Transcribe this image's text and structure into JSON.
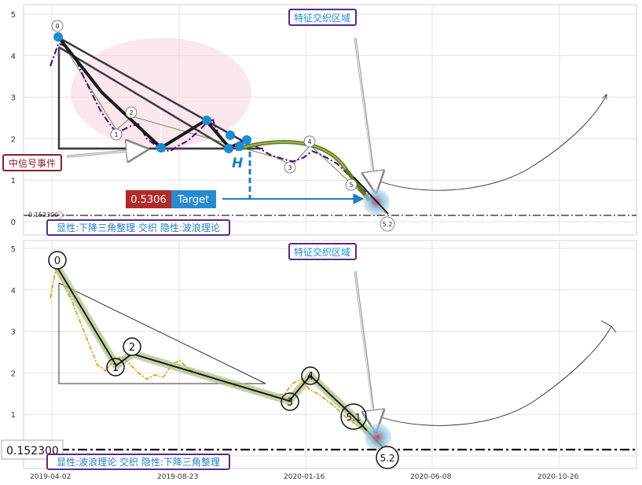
{
  "chart_data": [
    {
      "type": "line",
      "title": "",
      "ylim": [
        0,
        5.2
      ],
      "yticks": [
        0,
        1,
        2,
        3,
        4,
        5
      ],
      "grid": true,
      "zone_label": "特征交织区域",
      "signal_label": "中信号事件",
      "target": {
        "value_label": "0.5306",
        "name": "Target",
        "value": 0.5306
      },
      "baseline": {
        "label": "0.152300",
        "value": 0.1523
      },
      "footer": "显性:下降三角整理 交织 隐性:波浪理论",
      "h_label": "H",
      "wave_labels": [
        "0",
        "1",
        "2",
        "3",
        "4",
        "5",
        "5.2"
      ],
      "series": [
        {
          "name": "price",
          "color": "#4b0082",
          "values": [
            [
              0,
              3.75
            ],
            [
              6,
              4.3
            ],
            [
              12,
              4.2
            ],
            [
              18,
              3.95
            ],
            [
              24,
              3.5
            ],
            [
              30,
              3.1
            ],
            [
              36,
              2.7
            ],
            [
              42,
              2.4
            ],
            [
              48,
              2.15
            ],
            [
              52,
              2.2
            ],
            [
              58,
              2.3
            ],
            [
              64,
              2.35
            ],
            [
              70,
              2.0
            ],
            [
              76,
              1.85
            ],
            [
              82,
              1.7
            ],
            [
              88,
              1.72
            ],
            [
              94,
              1.85
            ],
            [
              100,
              1.95
            ],
            [
              108,
              2.2
            ],
            [
              114,
              2.4
            ],
            [
              118,
              2.45
            ],
            [
              122,
              2.1
            ],
            [
              126,
              1.95
            ],
            [
              130,
              1.8
            ],
            [
              134,
              1.82
            ],
            [
              138,
              1.9
            ],
            [
              142,
              1.95
            ],
            [
              150,
              1.8
            ],
            [
              160,
              1.6
            ],
            [
              170,
              1.5
            ],
            [
              176,
              1.45
            ],
            [
              184,
              1.55
            ],
            [
              190,
              1.7
            ],
            [
              194,
              1.65
            ],
            [
              200,
              1.55
            ],
            [
              208,
              1.4
            ],
            [
              214,
              1.2
            ],
            [
              220,
              1.0
            ],
            [
              226,
              0.8
            ],
            [
              232,
              0.6
            ],
            [
              236,
              0.45
            ]
          ]
        }
      ]
    },
    {
      "type": "line",
      "title": "",
      "ylim": [
        0,
        5.2
      ],
      "yticks": [
        0,
        1,
        2,
        3,
        4,
        5
      ],
      "grid": true,
      "zone_label": "特征交织区域",
      "baseline": {
        "label": "0.152300",
        "value": 0.1523
      },
      "footer": "显性:波浪理论 交织 隐性:下降三角整理",
      "wave_labels": [
        "0",
        "1",
        "2",
        "3",
        "4",
        "5.1",
        "5.2"
      ],
      "x_tick_labels": [
        "2019-04-02",
        "2019-08-23",
        "2020-01-16",
        "2020-06-08",
        "2020-10-26"
      ],
      "series": [
        {
          "name": "price",
          "color": "#e0a020",
          "values": [
            [
              0,
              3.8
            ],
            [
              4,
              4.5
            ],
            [
              10,
              4.1
            ],
            [
              16,
              3.7
            ],
            [
              22,
              3.2
            ],
            [
              28,
              2.7
            ],
            [
              34,
              2.2
            ],
            [
              40,
              2.05
            ],
            [
              46,
              2.3
            ],
            [
              52,
              2.4
            ],
            [
              58,
              2.2
            ],
            [
              64,
              2.0
            ],
            [
              70,
              1.85
            ],
            [
              76,
              1.95
            ],
            [
              82,
              1.9
            ],
            [
              88,
              2.2
            ],
            [
              94,
              2.3
            ],
            [
              100,
              2.1
            ],
            [
              108,
              2.0
            ],
            [
              116,
              1.9
            ],
            [
              124,
              1.8
            ],
            [
              132,
              1.7
            ],
            [
              140,
              1.65
            ],
            [
              148,
              1.55
            ],
            [
              156,
              1.5
            ],
            [
              164,
              1.45
            ],
            [
              170,
              1.5
            ],
            [
              176,
              1.75
            ],
            [
              182,
              1.85
            ],
            [
              188,
              1.6
            ],
            [
              194,
              1.5
            ],
            [
              200,
              1.35
            ],
            [
              206,
              1.2
            ],
            [
              212,
              1.0
            ],
            [
              218,
              0.85
            ],
            [
              224,
              0.7
            ],
            [
              230,
              0.55
            ],
            [
              236,
              0.4
            ]
          ]
        }
      ]
    }
  ]
}
